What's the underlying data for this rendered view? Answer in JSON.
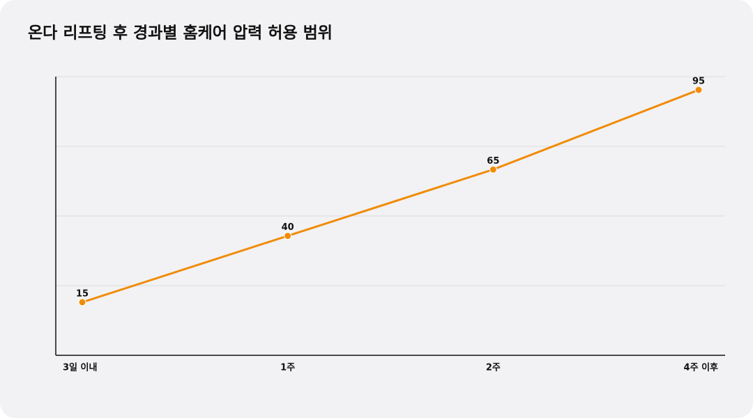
{
  "chart_data": {
    "type": "line",
    "title": "온다 리프팅 후 경과별 홈케어 압력 허용 범위",
    "categories": [
      "3일 이내",
      "1주",
      "2주",
      "4주 이후"
    ],
    "values": [
      15,
      40,
      65,
      95
    ],
    "color": "#f08c0a",
    "ylim": [
      -5,
      100
    ],
    "grid": true
  }
}
